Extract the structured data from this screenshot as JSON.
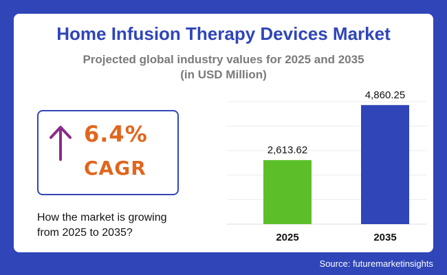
{
  "title": "Home Infusion Therapy Devices Market",
  "subtitle_line1": "Projected global industry values for 2025 and 2035",
  "subtitle_line2": "(in USD Million)",
  "cagr": {
    "value": "6.4%",
    "label": "CAGR",
    "icon": "arrow-up-icon"
  },
  "question_line1": "How the market is growing",
  "question_line2": "from 2025 to 2035?",
  "source": "Source: futuremarketinsights",
  "colors": {
    "brand": "#2f45b8",
    "accent": "#e0661e",
    "arrow": "#8b2a8b",
    "bar_2025": "#5cbf2a",
    "bar_2035": "#2f45b8"
  },
  "chart_data": {
    "type": "bar",
    "categories": [
      "2025",
      "2035"
    ],
    "values": [
      2613.62,
      4860.25
    ],
    "value_labels": [
      "2,613.62",
      "4,860.25"
    ],
    "ylim": [
      0,
      5500
    ],
    "grid": true,
    "title": "",
    "xlabel": "",
    "ylabel": ""
  }
}
